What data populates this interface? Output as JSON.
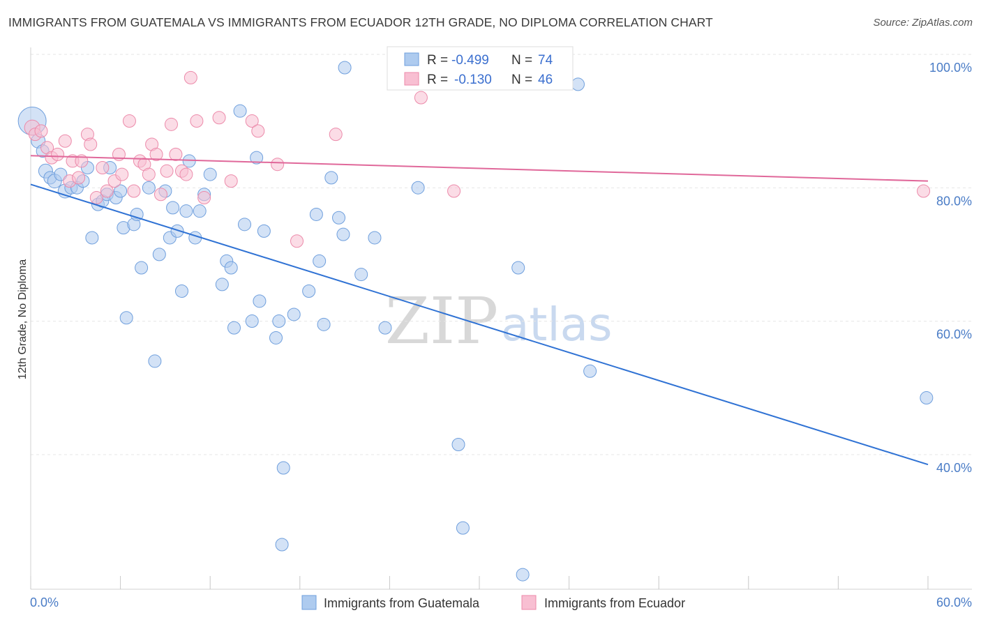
{
  "chart_data": {
    "type": "scatter",
    "title": "IMMIGRANTS FROM GUATEMALA VS IMMIGRANTS FROM ECUADOR 12TH GRADE, NO DIPLOMA CORRELATION CHART",
    "source": "Source: ZipAtlas.com",
    "xlabel": "",
    "ylabel": "12th Grade, No Diploma",
    "xlim": [
      0,
      60
    ],
    "ylim": [
      20,
      102
    ],
    "x_tick_labels": [
      "0.0%",
      "60.0%"
    ],
    "y_ticks": [
      {
        "value": 100,
        "label": "100.0%"
      },
      {
        "value": 80,
        "label": "80.0%"
      },
      {
        "value": 60,
        "label": "60.0%"
      },
      {
        "value": 40,
        "label": "40.0%"
      }
    ],
    "watermark": {
      "zip": "ZIP",
      "atlas": "atlas"
    },
    "legend": {
      "rows": [
        {
          "r_label": "R =",
          "r_value": "-0.499",
          "n_label": "N =",
          "n_value": "74"
        },
        {
          "r_label": "R =",
          "r_value": "-0.130",
          "n_label": "N =",
          "n_value": "46"
        }
      ]
    },
    "series": [
      {
        "name": "Immigrants from Guatemala",
        "color": "#6f9fdd",
        "fill": "#aecbef",
        "line_color": "#2f72d4",
        "trend": {
          "x0": 0,
          "y0": 82.5,
          "x1": 60,
          "y1": 40.5
        },
        "points": [
          [
            0.1,
            92.0,
            20
          ],
          [
            0.5,
            89.0,
            10
          ],
          [
            0.8,
            87.5,
            9
          ],
          [
            1.0,
            84.5,
            10
          ],
          [
            1.3,
            83.5,
            9
          ],
          [
            1.6,
            83.0,
            10
          ],
          [
            2.0,
            84.0,
            9
          ],
          [
            2.3,
            81.5,
            10
          ],
          [
            2.7,
            82.0,
            9
          ],
          [
            3.1,
            82.0,
            9
          ],
          [
            3.5,
            83.0,
            9
          ],
          [
            3.8,
            85.0,
            9
          ],
          [
            4.1,
            74.5,
            9
          ],
          [
            4.5,
            79.5,
            9
          ],
          [
            4.8,
            80.0,
            9
          ],
          [
            5.1,
            81.0,
            9
          ],
          [
            5.3,
            85.0,
            9
          ],
          [
            5.7,
            80.5,
            9
          ],
          [
            6.0,
            81.5,
            9
          ],
          [
            6.2,
            76.0,
            9
          ],
          [
            6.4,
            62.5,
            9
          ],
          [
            6.9,
            76.5,
            9
          ],
          [
            7.1,
            78.0,
            9
          ],
          [
            7.4,
            70.0,
            9
          ],
          [
            7.9,
            82.0,
            9
          ],
          [
            8.3,
            56.0,
            9
          ],
          [
            8.6,
            72.0,
            9
          ],
          [
            9.0,
            81.5,
            9
          ],
          [
            9.3,
            74.5,
            9
          ],
          [
            9.5,
            79.0,
            9
          ],
          [
            9.8,
            75.5,
            9
          ],
          [
            10.1,
            66.5,
            9
          ],
          [
            10.4,
            78.5,
            9
          ],
          [
            10.6,
            86.0,
            9
          ],
          [
            11.0,
            74.5,
            9
          ],
          [
            11.3,
            78.5,
            9
          ],
          [
            11.6,
            81.0,
            9
          ],
          [
            12.0,
            84.0,
            9
          ],
          [
            12.8,
            67.5,
            9
          ],
          [
            13.1,
            71.0,
            9
          ],
          [
            13.4,
            70.0,
            9
          ],
          [
            13.6,
            61.0,
            9
          ],
          [
            14.0,
            93.5,
            9
          ],
          [
            14.3,
            76.5,
            9
          ],
          [
            14.8,
            62.0,
            9
          ],
          [
            15.1,
            86.5,
            9
          ],
          [
            15.3,
            65.0,
            9
          ],
          [
            15.6,
            75.5,
            9
          ],
          [
            16.4,
            59.5,
            9
          ],
          [
            16.6,
            62.0,
            9
          ],
          [
            16.9,
            40.0,
            9
          ],
          [
            16.8,
            28.5,
            9
          ],
          [
            17.6,
            63.0,
            9
          ],
          [
            18.6,
            66.5,
            9
          ],
          [
            19.1,
            78.0,
            9
          ],
          [
            19.3,
            71.0,
            9
          ],
          [
            19.6,
            61.5,
            9
          ],
          [
            20.1,
            83.5,
            9
          ],
          [
            20.6,
            77.5,
            9
          ],
          [
            20.9,
            75.0,
            9
          ],
          [
            21.0,
            100.0,
            9
          ],
          [
            22.1,
            69.0,
            9
          ],
          [
            23.0,
            74.5,
            9
          ],
          [
            23.7,
            61.0,
            9
          ],
          [
            25.9,
            82.0,
            9
          ],
          [
            28.6,
            43.5,
            9
          ],
          [
            28.9,
            31.0,
            9
          ],
          [
            32.6,
            70.0,
            9
          ],
          [
            32.9,
            24.0,
            9
          ],
          [
            36.6,
            97.5,
            9
          ],
          [
            37.4,
            54.5,
            9
          ],
          [
            59.9,
            50.5,
            9
          ]
        ]
      },
      {
        "name": "Immigrants from Ecuador",
        "color": "#ec8aaa",
        "fill": "#f8bfd2",
        "line_color": "#e0689a",
        "trend": {
          "x0": 0,
          "y0": 86.8,
          "x1": 60,
          "y1": 83.0
        },
        "points": [
          [
            0.1,
            91.0,
            11
          ],
          [
            0.3,
            90.0,
            9
          ],
          [
            0.7,
            90.5,
            9
          ],
          [
            1.1,
            88.0,
            9
          ],
          [
            1.4,
            86.5,
            9
          ],
          [
            1.8,
            87.0,
            9
          ],
          [
            2.3,
            89.0,
            9
          ],
          [
            2.6,
            83.0,
            9
          ],
          [
            2.8,
            86.0,
            9
          ],
          [
            3.2,
            83.5,
            9
          ],
          [
            3.4,
            86.0,
            9
          ],
          [
            3.8,
            90.0,
            9
          ],
          [
            4.0,
            88.5,
            9
          ],
          [
            4.4,
            80.5,
            9
          ],
          [
            4.8,
            85.0,
            9
          ],
          [
            5.1,
            81.5,
            9
          ],
          [
            5.6,
            83.0,
            9
          ],
          [
            5.9,
            87.0,
            9
          ],
          [
            6.1,
            84.0,
            9
          ],
          [
            6.6,
            92.0,
            9
          ],
          [
            6.9,
            81.5,
            9
          ],
          [
            7.3,
            86.0,
            9
          ],
          [
            7.6,
            85.5,
            9
          ],
          [
            7.9,
            84.0,
            9
          ],
          [
            8.1,
            88.5,
            9
          ],
          [
            8.4,
            87.0,
            9
          ],
          [
            8.7,
            81.0,
            9
          ],
          [
            9.1,
            84.5,
            9
          ],
          [
            9.4,
            91.5,
            9
          ],
          [
            9.7,
            87.0,
            9
          ],
          [
            10.1,
            84.5,
            9
          ],
          [
            10.4,
            84.0,
            9
          ],
          [
            10.7,
            98.5,
            9
          ],
          [
            11.1,
            92.0,
            9
          ],
          [
            11.6,
            80.5,
            9
          ],
          [
            12.6,
            92.5,
            9
          ],
          [
            13.4,
            83.0,
            9
          ],
          [
            14.8,
            92.0,
            9
          ],
          [
            15.2,
            90.5,
            9
          ],
          [
            16.5,
            85.5,
            9
          ],
          [
            17.8,
            74.0,
            9
          ],
          [
            20.4,
            90.0,
            9
          ],
          [
            26.1,
            95.5,
            9
          ],
          [
            28.3,
            81.5,
            9
          ],
          [
            59.7,
            81.5,
            9
          ]
        ]
      }
    ]
  }
}
